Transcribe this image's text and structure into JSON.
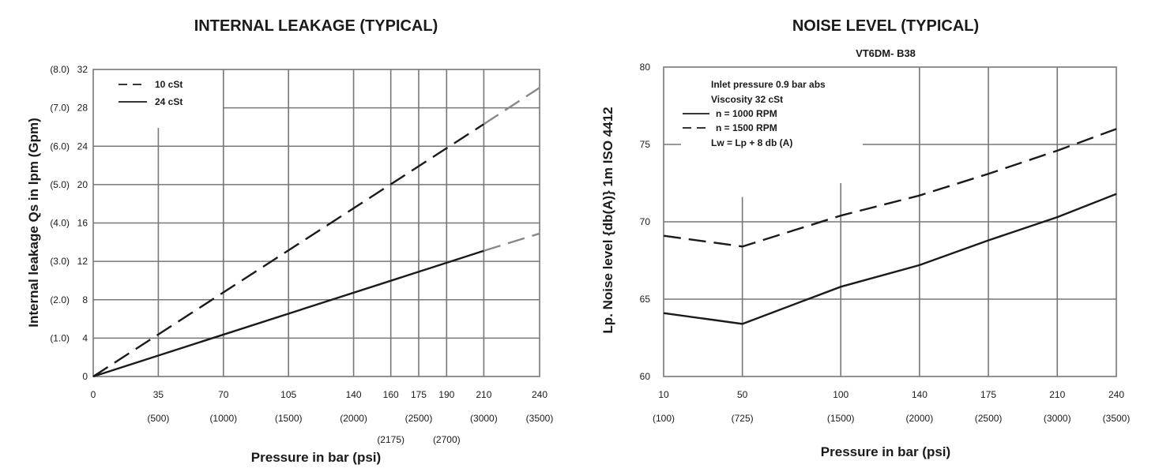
{
  "chart_data": [
    {
      "type": "line",
      "title": "INTERNAL LEAKAGE (TYPICAL)",
      "xlabel": "Pressure in bar (psi)",
      "ylabel": "Internal leakage Qs in lpm (Gpm)",
      "xlim": [
        0,
        240
      ],
      "ylim": [
        0,
        32
      ],
      "x_ticks": [
        {
          "value": 0,
          "label": "0",
          "sub": ""
        },
        {
          "value": 35,
          "label": "35",
          "sub": "(500)"
        },
        {
          "value": 70,
          "label": "70",
          "sub": "(1000)"
        },
        {
          "value": 105,
          "label": "105",
          "sub": "(1500)"
        },
        {
          "value": 140,
          "label": "140",
          "sub": "(2000)"
        },
        {
          "value": 160,
          "label": "160",
          "sub": "(2175)"
        },
        {
          "value": 175,
          "label": "175",
          "sub": "(2500)"
        },
        {
          "value": 190,
          "label": "190",
          "sub": "(2700)"
        },
        {
          "value": 210,
          "label": "210",
          "sub": "(3000)"
        },
        {
          "value": 240,
          "label": "240",
          "sub": "(3500)"
        }
      ],
      "y_ticks": [
        {
          "value": 0,
          "label": "0",
          "sub": ""
        },
        {
          "value": 4,
          "label": "4",
          "sub": "(1.0)"
        },
        {
          "value": 8,
          "label": "8",
          "sub": "(2.0)"
        },
        {
          "value": 12,
          "label": "12",
          "sub": "(3.0)"
        },
        {
          "value": 16,
          "label": "16",
          "sub": "(4.0)"
        },
        {
          "value": 20,
          "label": "20",
          "sub": "(5.0)"
        },
        {
          "value": 24,
          "label": "24",
          "sub": "(6.0)"
        },
        {
          "value": 28,
          "label": "28",
          "sub": "(7.0)"
        },
        {
          "value": 32,
          "label": "32",
          "sub": "(8.0)"
        }
      ],
      "legend": [
        "10 cSt",
        "24 cSt"
      ],
      "series": [
        {
          "name": "10 cSt",
          "style": "dashed",
          "x": [
            0,
            210,
            240
          ],
          "y": [
            0,
            26.3,
            30.1
          ],
          "solid_until_x": 210
        },
        {
          "name": "24 cSt",
          "style": "solid",
          "x": [
            0,
            210,
            240
          ],
          "y": [
            0,
            13.1,
            14.9
          ],
          "solid_until_x": 210
        }
      ],
      "colors": {
        "main": "#1a1a1a",
        "extension": "#888888",
        "grid": "#777777"
      },
      "grid": true
    },
    {
      "type": "line",
      "title": "NOISE LEVEL (TYPICAL)",
      "subtitle": "VT6DM- B38",
      "xlabel": "Pressure in bar (psi)",
      "ylabel": "Lp. Noise level {db(A)} 1m ISO 4412",
      "xlim": [
        10,
        240
      ],
      "ylim": [
        60,
        80
      ],
      "x_ticks": [
        {
          "value": 10,
          "label": "10",
          "sub": "(100)"
        },
        {
          "value": 50,
          "label": "50",
          "sub": "(725)"
        },
        {
          "value": 100,
          "label": "100",
          "sub": "(1500)"
        },
        {
          "value": 140,
          "label": "140",
          "sub": "(2000)"
        },
        {
          "value": 175,
          "label": "175",
          "sub": "(2500)"
        },
        {
          "value": 210,
          "label": "210",
          "sub": "(3000)"
        },
        {
          "value": 240,
          "label": "240",
          "sub": "(3500)"
        }
      ],
      "y_ticks": [
        {
          "value": 60,
          "label": "60"
        },
        {
          "value": 65,
          "label": "65"
        },
        {
          "value": 70,
          "label": "70"
        },
        {
          "value": 75,
          "label": "75"
        },
        {
          "value": 80,
          "label": "80"
        }
      ],
      "annotations": [
        "Inlet pressure   0.9 bar abs",
        "Viscosity   32 cSt",
        "Lw = Lp + 8 db (A)"
      ],
      "legend": [
        "n  = 1000 RPM",
        "n  = 1500 RPM"
      ],
      "series": [
        {
          "name": "n  = 1000 RPM",
          "style": "solid",
          "x": [
            10,
            50,
            100,
            140,
            175,
            210,
            240
          ],
          "y": [
            64.1,
            63.4,
            65.8,
            67.2,
            68.8,
            70.3,
            71.8
          ]
        },
        {
          "name": "n  = 1500 RPM",
          "style": "dashed",
          "x": [
            10,
            50,
            100,
            140,
            175,
            210,
            240
          ],
          "y": [
            69.1,
            68.4,
            70.4,
            71.7,
            73.1,
            74.6,
            76.0
          ]
        }
      ],
      "colors": {
        "main": "#1a1a1a",
        "grid": "#777777"
      },
      "grid": true
    }
  ]
}
